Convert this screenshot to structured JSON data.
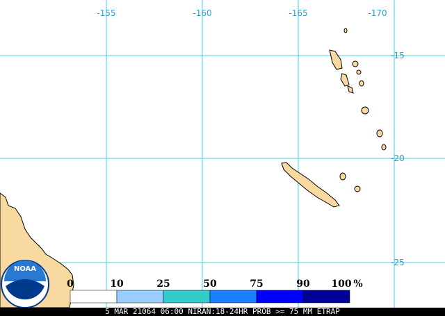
{
  "map": {
    "longitude_labels": [
      -155,
      -160,
      -165,
      -170
    ],
    "latitude_labels": [
      -15,
      -20,
      -25
    ],
    "legend": {
      "ticks": [
        0,
        10,
        25,
        50,
        75,
        90,
        100
      ],
      "unit": "%",
      "colors": [
        "#ffffff",
        "#99ccff",
        "#33cccc",
        "#1a80ff",
        "#0000ff",
        "#000099"
      ]
    },
    "logo": "NOAA",
    "caption": "5 MAR 21064 06:00 NIRAN:18-24HR PROB >= 75 MM ETRAP"
  }
}
